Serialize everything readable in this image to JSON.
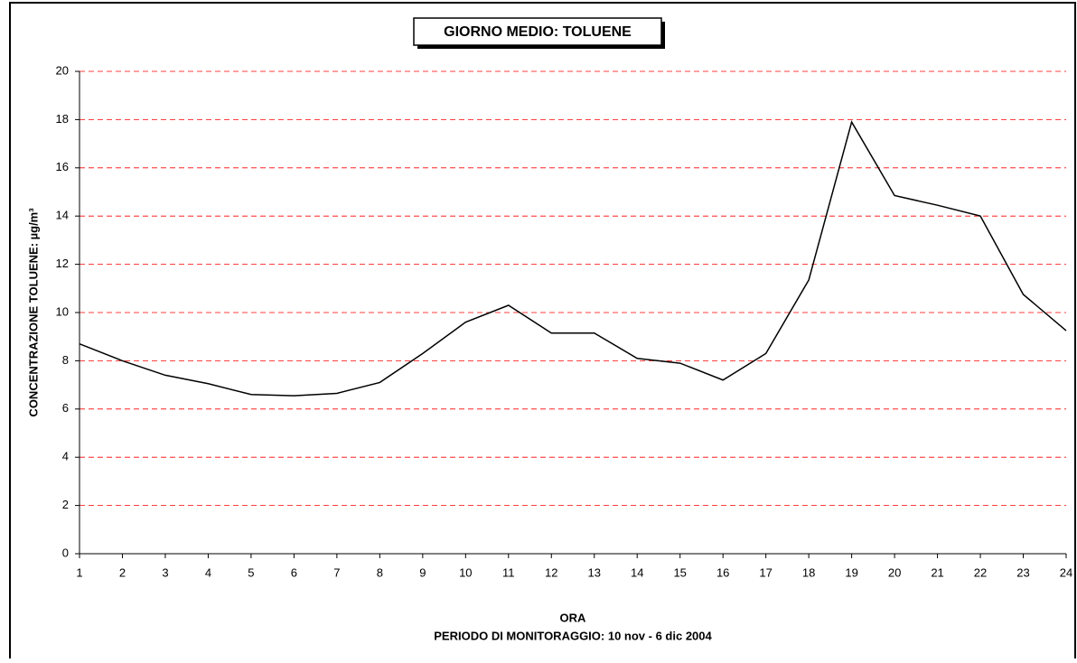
{
  "chart_data": {
    "type": "line",
    "title": "GIORNO MEDIO: TOLUENE",
    "y_label": "CONCENTRAZIONE TOLUENE: µg/m³",
    "x_label": "ORA",
    "subtitle": "PERIODO DI MONITORAGGIO: 10 nov - 6 dic 2004",
    "x": [
      1,
      2,
      3,
      4,
      5,
      6,
      7,
      8,
      9,
      10,
      11,
      12,
      13,
      14,
      15,
      16,
      17,
      18,
      19,
      20,
      21,
      22,
      23,
      24
    ],
    "series": [
      {
        "name": "TOLUENE",
        "color": "#000000",
        "values": [
          8.7,
          8.0,
          7.4,
          7.05,
          6.6,
          6.55,
          6.65,
          7.1,
          8.3,
          9.6,
          10.3,
          9.15,
          9.15,
          8.1,
          7.9,
          7.2,
          8.3,
          11.35,
          17.9,
          14.85,
          14.45,
          14.0,
          10.75,
          9.25
        ]
      }
    ],
    "xlim": [
      1,
      24
    ],
    "xticks": [
      1,
      2,
      3,
      4,
      5,
      6,
      7,
      8,
      9,
      10,
      11,
      12,
      13,
      14,
      15,
      16,
      17,
      18,
      19,
      20,
      21,
      22,
      23,
      24
    ],
    "ylim": [
      0,
      20
    ],
    "yticks": [
      0,
      2,
      4,
      6,
      8,
      10,
      12,
      14,
      16,
      18,
      20
    ],
    "grid": true,
    "grid_color": "#ff0000"
  }
}
